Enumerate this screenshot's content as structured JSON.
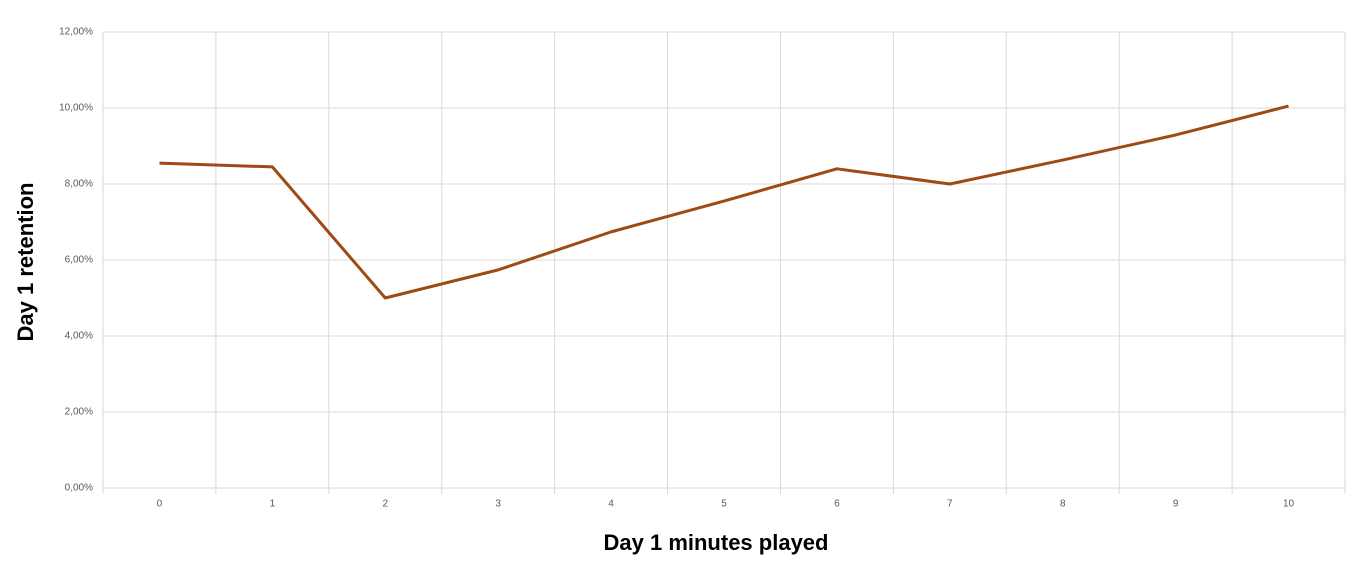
{
  "chart_data": {
    "type": "line",
    "x_label": "Day 1 minutes played",
    "y_label": "Day 1 retention",
    "categories": [
      "0",
      "1",
      "2",
      "3",
      "4",
      "5",
      "6",
      "7",
      "8",
      "9",
      "10"
    ],
    "series": [
      {
        "name": "Day 1 retention",
        "color": "#9e4a14",
        "values": [
          8.55,
          8.45,
          5.0,
          5.74,
          6.74,
          7.55,
          8.4,
          8.0,
          8.63,
          9.29,
          10.05
        ]
      }
    ],
    "ylim": [
      0,
      12
    ],
    "yticks": [
      {
        "value": 0,
        "label": "0,00%"
      },
      {
        "value": 2,
        "label": "2,00%"
      },
      {
        "value": 4,
        "label": "4,00%"
      },
      {
        "value": 6,
        "label": "6,00%"
      },
      {
        "value": 8,
        "label": "8,00%"
      },
      {
        "value": 10,
        "label": "10,00%"
      },
      {
        "value": 12,
        "label": "12,00%"
      }
    ],
    "grid": true
  }
}
